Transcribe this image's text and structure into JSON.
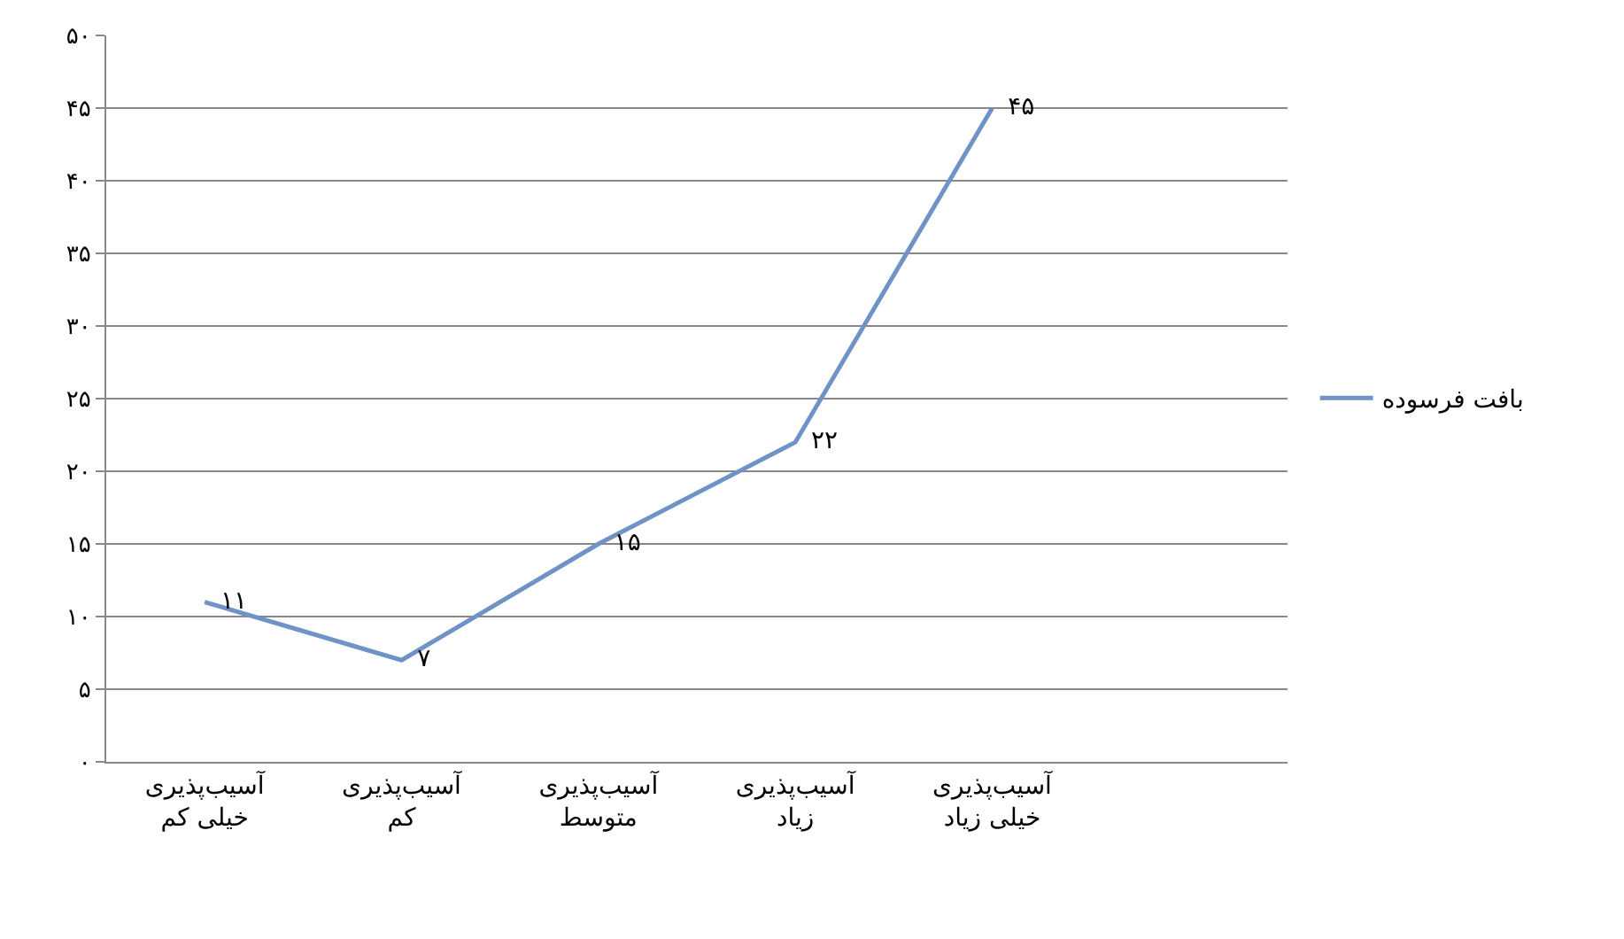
{
  "chart_data": {
    "type": "line",
    "categories": [
      "آسیب‌پذیری خیلی کم",
      "آسیب‌پذیری کم",
      "آسیب‌پذیری متوسط",
      "آسیب‌پذیری زیاد",
      "آسیب‌پذیری خیلی زیاد",
      null
    ],
    "series": [
      {
        "name": "بافت فرسوده",
        "color": "#6f93c6",
        "values": [
          11,
          7,
          15,
          22,
          45,
          null
        ],
        "value_labels": [
          "۱۱",
          "۷",
          "۱۵",
          "۲۲",
          "۴۵",
          null
        ]
      }
    ],
    "ylim": [
      0,
      50
    ],
    "yticks": [
      {
        "value": 0,
        "label": "۰"
      },
      {
        "value": 5,
        "label": "۵"
      },
      {
        "value": 10,
        "label": "۱۰"
      },
      {
        "value": 15,
        "label": "۱۵"
      },
      {
        "value": 20,
        "label": "۲۰"
      },
      {
        "value": 25,
        "label": "۲۵"
      },
      {
        "value": 30,
        "label": "۳۰"
      },
      {
        "value": 35,
        "label": "۳۵"
      },
      {
        "value": 40,
        "label": "۴۰"
      },
      {
        "value": 45,
        "label": "۴۵"
      },
      {
        "value": 50,
        "label": "۵۰"
      }
    ],
    "grid": "y",
    "legend": "right",
    "marker": "none",
    "line_style": "solid"
  }
}
